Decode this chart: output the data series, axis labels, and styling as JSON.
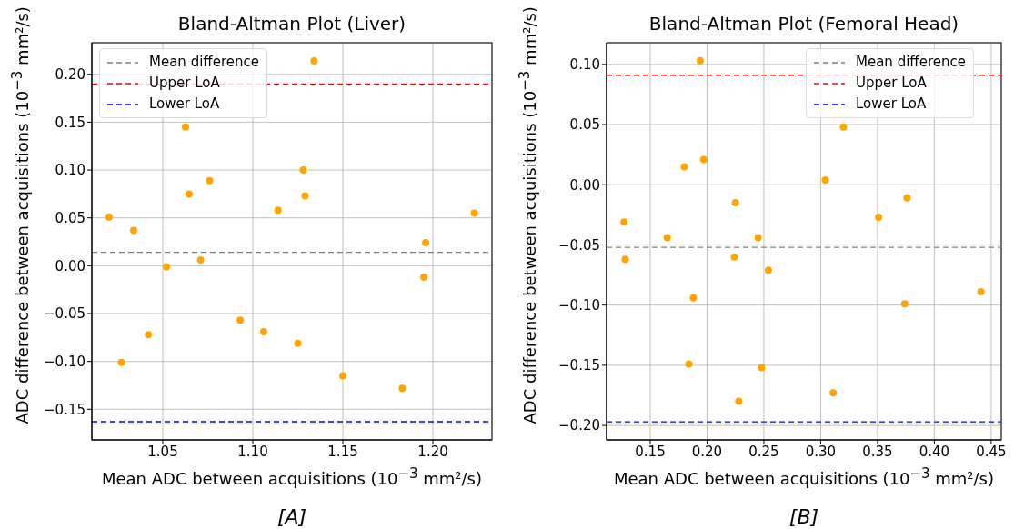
{
  "chart_data": [
    {
      "type": "scatter",
      "title": "Bland-Altman Plot (Liver)",
      "xlabel": "Mean ADC between acquisitions (10$^{−3}$ mm²/s)",
      "ylabel": "ADC difference between acquisitions (10$^{−3}$ mm²/s)",
      "annotations": [
        "[A]"
      ],
      "series": [
        {
          "color": "#ffa500",
          "x": [
            1.0202,
            1.0338,
            1.0626,
            1.0646,
            1.076,
            1.128,
            1.129,
            1.114,
            1.134,
            1.223,
            1.196,
            1.195,
            1.052,
            1.071,
            1.027,
            1.042,
            1.093,
            1.106,
            1.125,
            1.15,
            1.183
          ],
          "values": [
            0.051,
            0.037,
            0.145,
            0.075,
            0.089,
            0.1,
            0.073,
            0.058,
            0.214,
            0.055,
            0.024,
            -0.012,
            -0.001,
            0.006,
            -0.101,
            -0.072,
            -0.057,
            -0.069,
            -0.081,
            -0.115,
            -0.128
          ]
        }
      ],
      "xlim": [
        1.0106,
        1.2328
      ],
      "ylim": [
        -0.182,
        0.233
      ],
      "xticks": [
        {
          "value": 1.05,
          "label": "1.05"
        },
        {
          "value": 1.1,
          "label": "1.10"
        },
        {
          "value": 1.15,
          "label": "1.15"
        },
        {
          "value": 1.2,
          "label": "1.20"
        }
      ],
      "yticks": [
        {
          "value": -0.15,
          "label": "−0.15"
        },
        {
          "value": -0.1,
          "label": "−0.10"
        },
        {
          "value": -0.05,
          "label": "−0.05"
        },
        {
          "value": 0,
          "label": "0.00"
        },
        {
          "value": 0.05,
          "label": "0.05"
        },
        {
          "value": 0.1,
          "label": "0.10"
        },
        {
          "value": 0.15,
          "label": "0.15"
        },
        {
          "value": 0.2,
          "label": "0.20"
        }
      ],
      "grid": true,
      "legend": "top left",
      "marker": "circle",
      "ref_lines": [
        {
          "axis": "y",
          "value": 0.014,
          "label": "Mean difference",
          "color": "#808080",
          "line_style": "dashed"
        },
        {
          "axis": "y",
          "value": 0.19,
          "label": "Upper LoA",
          "color": "#ff0000",
          "line_style": "dashed"
        },
        {
          "axis": "y",
          "value": -0.163,
          "label": "Lower LoA",
          "color": "#0000ff",
          "line_style": "dashed"
        }
      ]
    },
    {
      "type": "scatter",
      "title": "Bland-Altman Plot (Femoral Head)",
      "xlabel": "Mean ADC between acquisitions (10$^{−3}$ mm²/s)",
      "ylabel": "ADC difference between acquisitions (10$^{−3}$ mm²/s)",
      "annotations": [
        "[B]"
      ],
      "series": [
        {
          "color": "#ffa500",
          "x": [
            0.127,
            0.128,
            0.165,
            0.18,
            0.197,
            0.194,
            0.225,
            0.224,
            0.245,
            0.254,
            0.188,
            0.184,
            0.228,
            0.248,
            0.304,
            0.32,
            0.351,
            0.376,
            0.374,
            0.311,
            0.441
          ],
          "values": [
            -0.031,
            -0.062,
            -0.044,
            0.015,
            0.021,
            0.103,
            -0.015,
            -0.06,
            -0.044,
            -0.071,
            -0.094,
            -0.149,
            -0.18,
            -0.152,
            0.004,
            0.048,
            -0.027,
            -0.011,
            -0.099,
            -0.173,
            -0.089
          ]
        }
      ],
      "xlim": [
        0.1116,
        0.4589
      ],
      "ylim": [
        -0.212,
        0.118
      ],
      "xticks": [
        {
          "value": 0.15,
          "label": "0.15"
        },
        {
          "value": 0.2,
          "label": "0.20"
        },
        {
          "value": 0.25,
          "label": "0.25"
        },
        {
          "value": 0.3,
          "label": "0.30"
        },
        {
          "value": 0.35,
          "label": "0.35"
        },
        {
          "value": 0.4,
          "label": "0.40"
        },
        {
          "value": 0.45,
          "label": "0.45"
        }
      ],
      "yticks": [
        {
          "value": -0.2,
          "label": "−0.20"
        },
        {
          "value": -0.15,
          "label": "−0.15"
        },
        {
          "value": -0.1,
          "label": "−0.10"
        },
        {
          "value": -0.05,
          "label": "−0.05"
        },
        {
          "value": 0,
          "label": "0.00"
        },
        {
          "value": 0.05,
          "label": "0.05"
        },
        {
          "value": 0.1,
          "label": "0.10"
        }
      ],
      "grid": true,
      "legend": "top right",
      "marker": "circle",
      "ref_lines": [
        {
          "axis": "y",
          "value": -0.052,
          "label": "Mean difference",
          "color": "#808080",
          "line_style": "dashed"
        },
        {
          "axis": "y",
          "value": 0.091,
          "label": "Upper LoA",
          "color": "#ff0000",
          "line_style": "dashed"
        },
        {
          "axis": "y",
          "value": -0.197,
          "label": "Lower LoA",
          "color": "#0000ff",
          "line_style": "dashed"
        }
      ]
    }
  ]
}
